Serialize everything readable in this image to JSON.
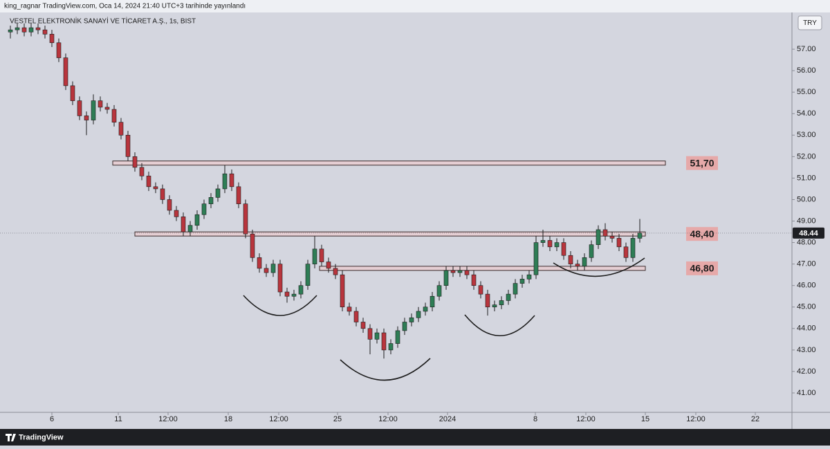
{
  "header": {
    "text": "king_ragnar TradingView.com, Oca 14, 2024 21:40 UTC+3 tarihinde yayınlandı"
  },
  "footer": {
    "brand": "TradingView"
  },
  "chart_data": {
    "type": "candlestick",
    "title": "VESTEL ELEKTRONİK SANAYİ VE TİCARET A.Ş., 1s, BIST",
    "currency": "TRY",
    "up_color": "#2e7d55",
    "down_color": "#b8353d",
    "open": [
      57.8,
      57.9,
      58.0,
      57.8,
      58.0,
      57.9,
      57.7,
      57.3,
      56.6,
      55.3,
      54.6,
      53.9,
      53.7,
      54.6,
      54.3,
      54.2,
      53.6,
      53.0,
      52.0,
      51.5,
      51.1,
      50.6,
      50.5,
      50.0,
      49.5,
      49.2,
      48.5,
      48.8,
      49.3,
      49.8,
      50.1,
      50.5,
      51.2,
      50.6,
      49.8,
      48.4,
      47.3,
      46.8,
      46.6,
      47.0,
      45.7,
      45.5,
      45.6,
      46.0,
      47.0,
      47.7,
      47.1,
      46.8,
      46.5,
      45.0,
      44.8,
      44.3,
      44.0,
      43.5,
      43.8,
      43.0,
      43.3,
      43.9,
      44.3,
      44.5,
      44.8,
      45.0,
      45.5,
      46.0,
      46.7,
      46.6,
      46.7,
      46.5,
      46.0,
      45.6,
      45.0,
      45.1,
      45.3,
      45.6,
      46.1,
      46.3,
      46.5,
      48.0,
      48.1,
      47.8,
      48.0,
      47.4,
      47.0,
      46.9,
      47.3,
      47.9,
      48.6,
      48.3,
      48.2,
      47.8,
      47.3,
      48.2
    ],
    "high": [
      58.1,
      58.2,
      58.2,
      58.2,
      58.2,
      58.1,
      57.9,
      57.5,
      56.8,
      55.5,
      54.8,
      54.1,
      54.9,
      54.8,
      54.5,
      54.4,
      53.8,
      53.2,
      52.2,
      51.7,
      51.3,
      50.8,
      50.7,
      50.2,
      49.7,
      49.4,
      49.0,
      49.5,
      50.0,
      50.3,
      50.7,
      51.6,
      51.4,
      50.8,
      50.0,
      48.6,
      47.5,
      47.0,
      47.2,
      47.2,
      45.9,
      45.8,
      46.2,
      47.2,
      48.3,
      47.9,
      47.3,
      47.0,
      46.7,
      45.2,
      45.0,
      44.5,
      44.2,
      44.0,
      44.0,
      43.5,
      44.1,
      44.5,
      44.7,
      45.0,
      45.2,
      45.7,
      46.2,
      46.9,
      46.9,
      46.9,
      46.9,
      46.7,
      46.2,
      45.8,
      45.3,
      45.5,
      45.8,
      46.3,
      46.5,
      46.7,
      48.3,
      48.6,
      48.3,
      48.2,
      48.2,
      47.6,
      47.2,
      47.5,
      48.1,
      48.8,
      48.9,
      48.5,
      48.4,
      48.0,
      48.4,
      49.1
    ],
    "low": [
      57.5,
      57.7,
      57.6,
      57.6,
      57.7,
      57.5,
      57.1,
      56.4,
      55.1,
      54.4,
      53.7,
      53.0,
      53.5,
      54.1,
      54.0,
      53.4,
      52.8,
      51.8,
      51.3,
      50.9,
      50.4,
      50.3,
      49.8,
      49.3,
      49.0,
      48.3,
      48.3,
      48.6,
      49.1,
      49.6,
      49.9,
      50.3,
      50.4,
      49.6,
      48.2,
      47.1,
      46.6,
      46.4,
      46.4,
      45.5,
      45.2,
      45.3,
      45.4,
      45.8,
      46.8,
      46.9,
      46.6,
      46.3,
      44.8,
      44.6,
      44.1,
      43.8,
      42.8,
      43.3,
      42.6,
      42.8,
      43.1,
      43.7,
      44.1,
      44.3,
      44.6,
      44.8,
      45.3,
      45.8,
      46.4,
      46.4,
      46.3,
      45.8,
      45.4,
      44.6,
      44.8,
      44.9,
      45.1,
      45.4,
      45.9,
      46.1,
      46.3,
      47.8,
      47.6,
      47.6,
      47.2,
      46.8,
      46.7,
      46.7,
      47.1,
      47.7,
      48.1,
      48.0,
      47.6,
      47.1,
      47.1,
      48.0
    ],
    "close": [
      57.9,
      58.0,
      57.8,
      58.0,
      57.9,
      57.7,
      57.3,
      56.6,
      55.3,
      54.6,
      53.9,
      53.7,
      54.6,
      54.3,
      54.2,
      53.6,
      53.0,
      52.0,
      51.5,
      51.1,
      50.6,
      50.5,
      50.0,
      49.5,
      49.2,
      48.5,
      48.8,
      49.3,
      49.8,
      50.1,
      50.5,
      51.2,
      50.6,
      49.8,
      48.4,
      47.3,
      46.8,
      46.6,
      47.0,
      45.7,
      45.5,
      45.6,
      46.0,
      47.0,
      47.7,
      47.1,
      46.8,
      46.5,
      45.0,
      44.8,
      44.3,
      44.0,
      43.5,
      43.8,
      43.0,
      43.3,
      43.9,
      44.3,
      44.5,
      44.8,
      45.0,
      45.5,
      46.0,
      46.7,
      46.6,
      46.7,
      46.5,
      46.0,
      45.6,
      45.0,
      45.1,
      45.3,
      45.6,
      46.1,
      46.3,
      46.5,
      48.0,
      48.1,
      47.8,
      48.0,
      47.4,
      47.0,
      46.9,
      47.3,
      47.9,
      48.6,
      48.3,
      48.2,
      47.8,
      47.3,
      48.2,
      48.44
    ],
    "last_price": 48.44,
    "levels": [
      {
        "value": 51.7,
        "label": "51,70",
        "start": 14.8,
        "end": 94.7
      },
      {
        "value": 48.4,
        "label": "48,40",
        "start": 18,
        "end": 91.8
      },
      {
        "value": 46.8,
        "label": "46,80",
        "start": 44.7,
        "end": 91.8
      }
    ],
    "xlim": [
      -1.5,
      113
    ],
    "xticks": [
      {
        "value": 6,
        "label": "6"
      },
      {
        "value": 15.6,
        "label": "11"
      },
      {
        "value": 22.8,
        "label": "12:00"
      },
      {
        "value": 31.5,
        "label": "18"
      },
      {
        "value": 38.8,
        "label": "12:00"
      },
      {
        "value": 47.3,
        "label": "25"
      },
      {
        "value": 54.6,
        "label": "12:00"
      },
      {
        "value": 63.2,
        "label": "2024"
      },
      {
        "value": 75.9,
        "label": "8"
      },
      {
        "value": 83.2,
        "label": "12:00"
      },
      {
        "value": 91.8,
        "label": "15"
      },
      {
        "value": 99.1,
        "label": "12:00"
      },
      {
        "value": 107.7,
        "label": "22"
      }
    ],
    "ylim": [
      40.13,
      58.71
    ],
    "yticks": [
      {
        "value": 41,
        "label": "41.00"
      },
      {
        "value": 42,
        "label": "42.00"
      },
      {
        "value": 43,
        "label": "43.00"
      },
      {
        "value": 44,
        "label": "44.00"
      },
      {
        "value": 45,
        "label": "45.00"
      },
      {
        "value": 46,
        "label": "46.00"
      },
      {
        "value": 47,
        "label": "47.00"
      },
      {
        "value": 48,
        "label": "48.00"
      },
      {
        "value": 49,
        "label": "49.00"
      },
      {
        "value": 50,
        "label": "50.00"
      },
      {
        "value": 51,
        "label": "51.00"
      },
      {
        "value": 52,
        "label": "52.00"
      },
      {
        "value": 53,
        "label": "53.00"
      },
      {
        "value": 54,
        "label": "54.00"
      },
      {
        "value": 55,
        "label": "55.00"
      },
      {
        "value": 56,
        "label": "56.00"
      },
      {
        "value": 57,
        "label": "57.00"
      }
    ]
  }
}
